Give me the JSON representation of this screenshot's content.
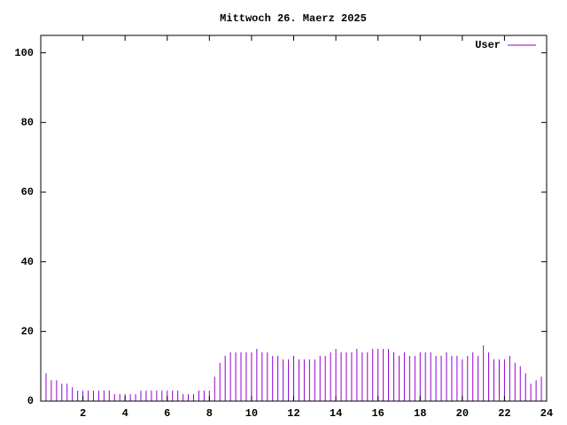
{
  "chart_data": {
    "type": "impulses",
    "title": "Mittwoch 26. Maerz 2025",
    "x": [
      0,
      0.25,
      0.5,
      0.75,
      1,
      1.25,
      1.5,
      1.75,
      2,
      2.25,
      2.5,
      2.75,
      3,
      3.25,
      3.5,
      3.75,
      4,
      4.25,
      4.5,
      4.75,
      5,
      5.25,
      5.5,
      5.75,
      6,
      6.25,
      6.5,
      6.75,
      7,
      7.25,
      7.5,
      7.75,
      8,
      8.25,
      8.5,
      8.75,
      9,
      9.25,
      9.5,
      9.75,
      10,
      10.25,
      10.5,
      10.75,
      11,
      11.25,
      11.5,
      11.75,
      12,
      12.25,
      12.5,
      12.75,
      13,
      13.25,
      13.5,
      13.75,
      14,
      14.25,
      14.5,
      14.75,
      15,
      15.25,
      15.5,
      15.75,
      16,
      16.25,
      16.5,
      16.75,
      17,
      17.25,
      17.5,
      17.75,
      18,
      18.25,
      18.5,
      18.75,
      19,
      19.25,
      19.5,
      19.75,
      20,
      20.25,
      20.5,
      20.75,
      21,
      21.25,
      21.5,
      21.75,
      22,
      22.25,
      22.5,
      22.75,
      23,
      23.25,
      23.5,
      23.75
    ],
    "series": [
      {
        "name": "User",
        "color": "#9400d3",
        "values": [
          8,
          8,
          6,
          6,
          5,
          5,
          4,
          3,
          3,
          3,
          3,
          3,
          3,
          3,
          2,
          2,
          2,
          2,
          2,
          3,
          3,
          3,
          3,
          3,
          3,
          3,
          3,
          2,
          2,
          2,
          3,
          3,
          3,
          7,
          11,
          13,
          14,
          14,
          14,
          14,
          14,
          15,
          14,
          14,
          13,
          13,
          12,
          12,
          13,
          12,
          12,
          12,
          12,
          13,
          13,
          14,
          15,
          14,
          14,
          14,
          15,
          14,
          14,
          15,
          15,
          15,
          15,
          14,
          13,
          14,
          13,
          13,
          14,
          14,
          14,
          13,
          13,
          14,
          13,
          13,
          12,
          13,
          14,
          13,
          16,
          14,
          12,
          12,
          12,
          13,
          11,
          10,
          8,
          5,
          6,
          7
        ]
      }
    ],
    "xlim": [
      0,
      24
    ],
    "xticks": [
      2,
      4,
      6,
      8,
      10,
      12,
      14,
      16,
      18,
      20,
      22,
      24
    ],
    "ylim": [
      0,
      105
    ],
    "yticks": [
      0,
      20,
      40,
      60,
      80,
      100
    ],
    "legend": "top-right"
  }
}
